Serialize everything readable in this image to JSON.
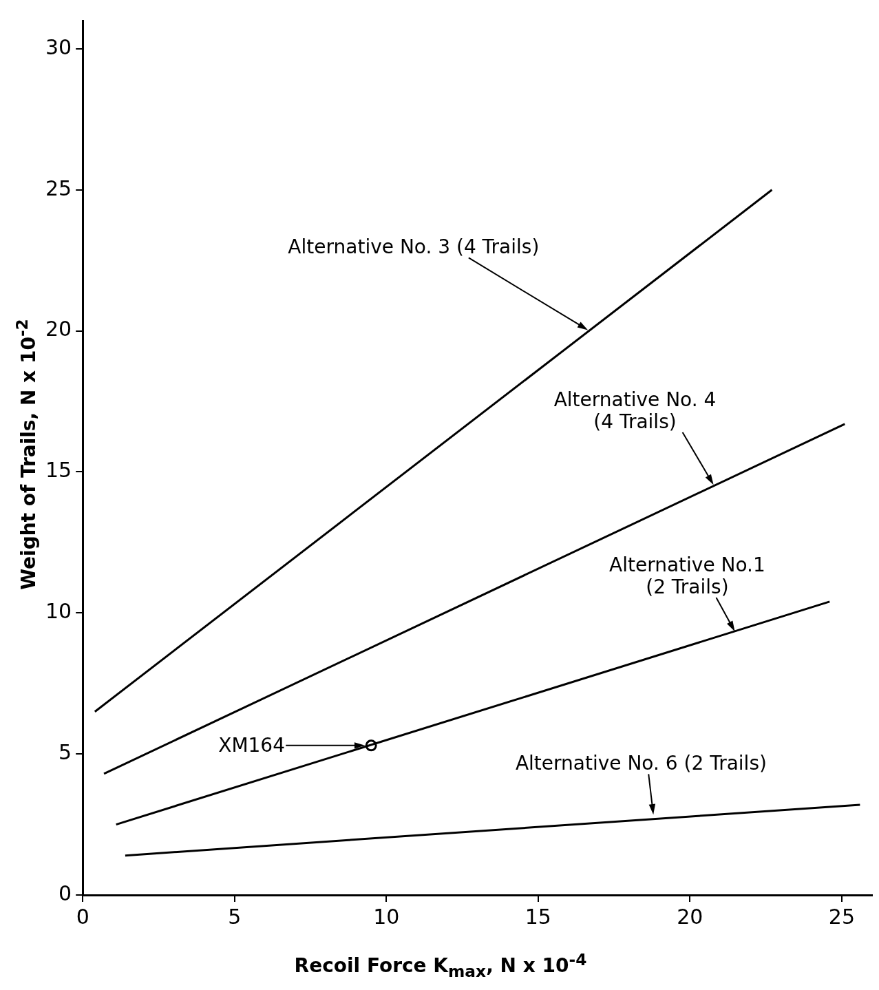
{
  "chart_data": {
    "type": "line",
    "xlabel": "Recoil Force K$_{max}$, N x 10$^{-4}$",
    "ylabel": "Weight of Trails, N x 10$^{-2}$",
    "xlim": [
      0,
      26
    ],
    "xticks": [
      0,
      5,
      10,
      15,
      20,
      25
    ],
    "ylim": [
      0,
      31
    ],
    "yticks": [
      0,
      5,
      10,
      15,
      20,
      25,
      30
    ],
    "grid": false,
    "legend": false,
    "line_style": "solid",
    "series": [
      {
        "x": [
          0.4,
          22.7
        ],
        "values": [
          6.5,
          25
        ],
        "color": "#000000"
      },
      {
        "x": [
          0.7,
          25.1
        ],
        "values": [
          4.3,
          16.7
        ],
        "color": "#000000"
      },
      {
        "x": [
          1.1,
          24.6
        ],
        "values": [
          2.5,
          10.4
        ],
        "color": "#000000"
      },
      {
        "x": [
          1.4,
          25.6
        ],
        "values": [
          1.4,
          3.2
        ],
        "color": "#000000"
      },
      {
        "type": "scatter",
        "marker": "circle",
        "x": [
          9.5
        ],
        "values": [
          5.3
        ],
        "color": "#000000"
      }
    ],
    "annotations": [
      "Alternative No. 3 (4 Trails)",
      {
        "text": "Alternative No. 4\n(4 Trails)",
        "x": 20.8,
        "y": 14.5
      },
      {
        "text": "Alternative No.1\n(2 Trails)",
        "x": 21.5,
        "y": 9.3
      },
      {
        "text": "Alternative No. 6 (2 Trails)",
        "x": 18.8,
        "y": 2.8
      },
      "XM164"
    ]
  }
}
